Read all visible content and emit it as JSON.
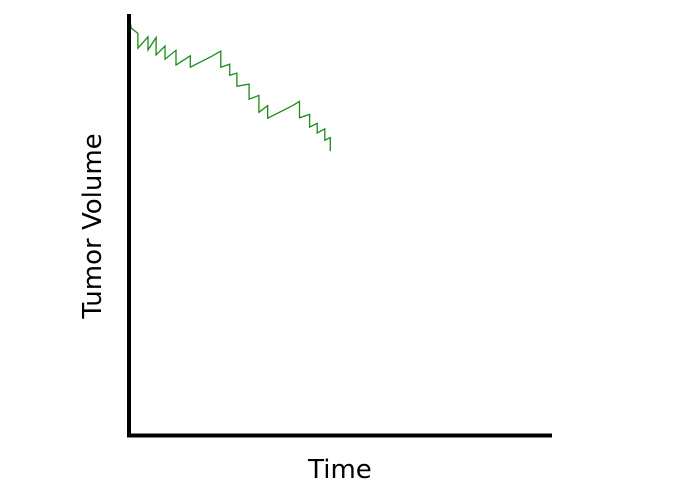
{
  "chart_data": {
    "type": "line",
    "title": "",
    "xlabel": "Time",
    "ylabel": "Tumor Volume",
    "xlim": [
      0,
      100
    ],
    "ylim": [
      0,
      100
    ],
    "grid": false,
    "ticks": false,
    "series": [
      {
        "color": "#1a8a1a",
        "x": [
          0,
          0.5,
          2.1,
          2.1,
          4.5,
          4.5,
          6.4,
          6.4,
          8.5,
          8.5,
          11.1,
          11.1,
          14.5,
          14.5,
          19.6,
          21.7,
          21.7,
          23.8,
          23.8,
          25.5,
          25.5,
          28.4,
          28.4,
          30.7,
          30.7,
          32.8,
          32.8,
          38.7,
          40.3,
          40.3,
          42.7,
          42.7,
          44.5,
          44.5,
          46.3,
          46.3,
          47.6,
          47.6
        ],
        "y": [
          100,
          96.7,
          95.4,
          91.9,
          94.6,
          91.5,
          94.4,
          90.3,
          92.4,
          89.3,
          91.4,
          87.9,
          90.1,
          87.4,
          90.0,
          91.2,
          87.4,
          88.1,
          85.5,
          86.0,
          82.9,
          83.4,
          79.8,
          80.7,
          76.7,
          78.3,
          75.3,
          78.3,
          79.3,
          75.4,
          76.2,
          73.2,
          74.1,
          71.8,
          72.8,
          70.1,
          70.7,
          67.5
        ]
      }
    ]
  }
}
